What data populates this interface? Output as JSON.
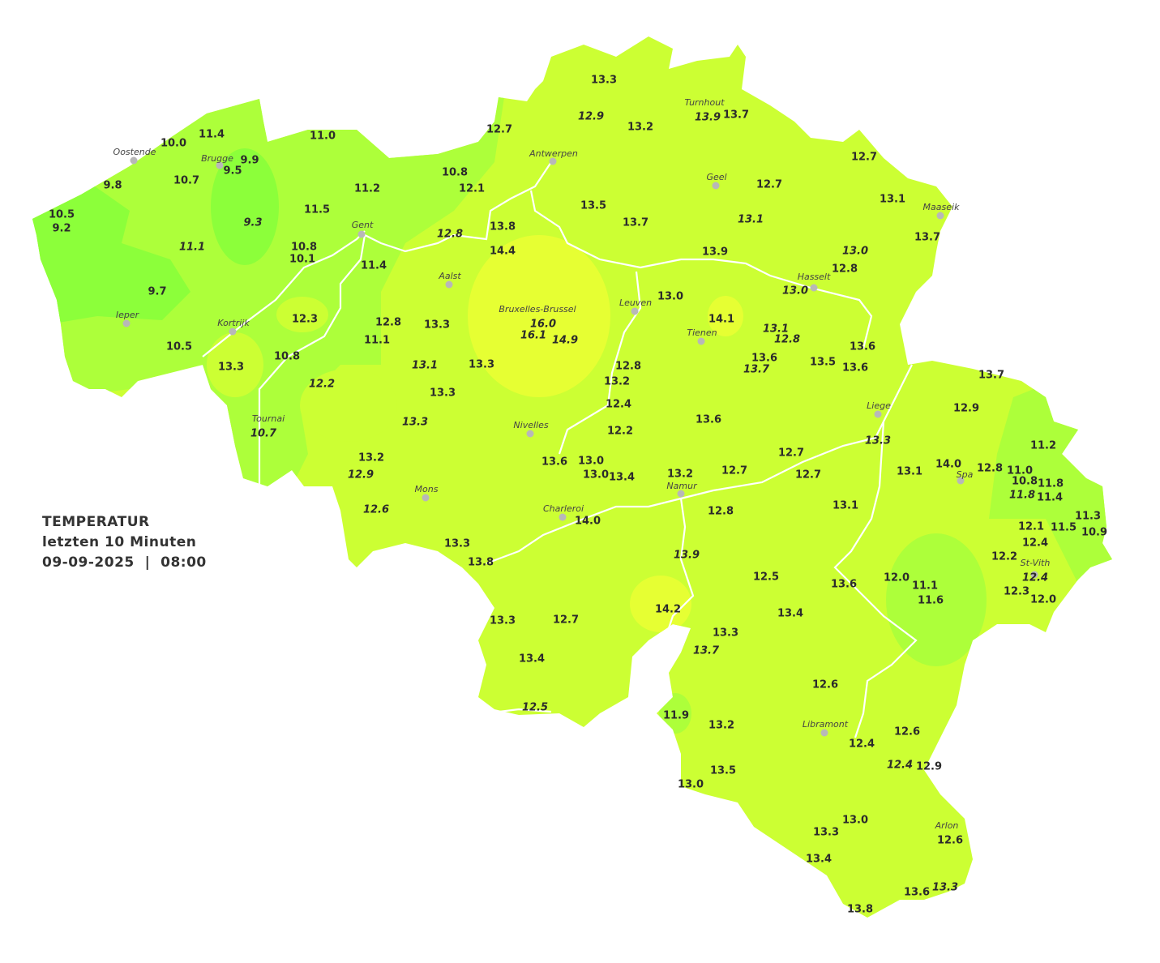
{
  "legend": {
    "title": "TEMPERATUR",
    "period": "letzten 10 Minuten",
    "datetime": "09-09-2025  |  08:00"
  },
  "colors": {
    "base": "#ccff33",
    "cool": "#adff3a",
    "cold": "#8cff3a",
    "warm": "#e6ff33",
    "river": "#ffffff",
    "city_dot": "#b8b8b8"
  },
  "cities": [
    "Oostende",
    "Brugge",
    "Gent",
    "Antwerpen",
    "Turnhout",
    "Geel",
    "Maaseik",
    "Aalst",
    "Ieper",
    "Kortrijk",
    "Leuven",
    "Hasselt",
    "Bruxelles-Brussel",
    "Tienen",
    "Liege",
    "Tournai",
    "Nivelles",
    "Spa",
    "Mons",
    "Namur",
    "Charleroi",
    "St-Vith",
    "Libramont",
    "Arlon"
  ],
  "stations": [
    {
      "v": "13.3"
    },
    {
      "v": "12.9",
      "italic": true
    },
    {
      "v": "13.2"
    },
    {
      "v": "13.9",
      "italic": true
    },
    {
      "v": "13.7"
    },
    {
      "v": "12.7"
    },
    {
      "v": "11.4"
    },
    {
      "v": "10.0"
    },
    {
      "v": "11.0"
    },
    {
      "v": "9.9"
    },
    {
      "v": "9.5"
    },
    {
      "v": "10.7"
    },
    {
      "v": "9.8"
    },
    {
      "v": "10.8"
    },
    {
      "v": "12.1"
    },
    {
      "v": "11.2"
    },
    {
      "v": "12.7"
    },
    {
      "v": "12.7"
    },
    {
      "v": "13.1"
    },
    {
      "v": "10.5"
    },
    {
      "v": "9.2"
    },
    {
      "v": "11.5"
    },
    {
      "v": "9.3",
      "italic": true
    },
    {
      "v": "13.5"
    },
    {
      "v": "13.7"
    },
    {
      "v": "13.1",
      "italic": true
    },
    {
      "v": "13.8"
    },
    {
      "v": "12.8",
      "italic": true
    },
    {
      "v": "14.4"
    },
    {
      "v": "13.7"
    },
    {
      "v": "11.1",
      "italic": true
    },
    {
      "v": "10.8"
    },
    {
      "v": "10.1"
    },
    {
      "v": "11.4"
    },
    {
      "v": "13.9"
    },
    {
      "v": "13.0",
      "italic": true
    },
    {
      "v": "12.8"
    },
    {
      "v": "13.0",
      "italic": true
    },
    {
      "v": "13.0"
    },
    {
      "v": "9.7"
    },
    {
      "v": "14.1"
    },
    {
      "v": "12.3"
    },
    {
      "v": "12.8"
    },
    {
      "v": "13.3"
    },
    {
      "v": "16.0",
      "italic": true
    },
    {
      "v": "16.1",
      "italic": true
    },
    {
      "v": "14.9",
      "italic": true
    },
    {
      "v": "10.5"
    },
    {
      "v": "11.1"
    },
    {
      "v": "13.1",
      "italic": true
    },
    {
      "v": "12.8",
      "italic": true
    },
    {
      "v": "13.3"
    },
    {
      "v": "10.8"
    },
    {
      "v": "13.1",
      "italic": true
    },
    {
      "v": "13.3"
    },
    {
      "v": "12.8"
    },
    {
      "v": "13.2"
    },
    {
      "v": "13.6"
    },
    {
      "v": "13.7",
      "italic": true
    },
    {
      "v": "13.5"
    },
    {
      "v": "13.6"
    },
    {
      "v": "13.6"
    },
    {
      "v": "12.2",
      "italic": true
    },
    {
      "v": "13.3"
    },
    {
      "v": "12.4"
    },
    {
      "v": "13.7"
    },
    {
      "v": "12.9"
    },
    {
      "v": "13.3",
      "italic": true
    },
    {
      "v": "12.2"
    },
    {
      "v": "13.6"
    },
    {
      "v": "10.7",
      "italic": true
    },
    {
      "v": "13.3",
      "italic": true
    },
    {
      "v": "11.2"
    },
    {
      "v": "13.2"
    },
    {
      "v": "12.9",
      "italic": true
    },
    {
      "v": "13.6"
    },
    {
      "v": "13.0"
    },
    {
      "v": "13.0"
    },
    {
      "v": "13.4"
    },
    {
      "v": "13.2"
    },
    {
      "v": "12.7"
    },
    {
      "v": "12.7"
    },
    {
      "v": "12.7"
    },
    {
      "v": "13.1"
    },
    {
      "v": "14.0"
    },
    {
      "v": "12.8"
    },
    {
      "v": "11.0"
    },
    {
      "v": "10.8"
    },
    {
      "v": "11.8"
    },
    {
      "v": "11.8",
      "italic": true
    },
    {
      "v": "11.4"
    },
    {
      "v": "12.6",
      "italic": true
    },
    {
      "v": "12.8"
    },
    {
      "v": "13.1"
    },
    {
      "v": "14.0"
    },
    {
      "v": "11.3"
    },
    {
      "v": "11.5"
    },
    {
      "v": "10.9"
    },
    {
      "v": "12.1"
    },
    {
      "v": "13.3"
    },
    {
      "v": "12.4"
    },
    {
      "v": "13.8"
    },
    {
      "v": "13.9",
      "italic": true
    },
    {
      "v": "12.2"
    },
    {
      "v": "12.4",
      "italic": true
    },
    {
      "v": "12.5"
    },
    {
      "v": "12.0"
    },
    {
      "v": "13.6"
    },
    {
      "v": "11.1"
    },
    {
      "v": "12.3"
    },
    {
      "v": "11.6"
    },
    {
      "v": "12.0"
    },
    {
      "v": "14.2"
    },
    {
      "v": "13.4"
    },
    {
      "v": "13.3"
    },
    {
      "v": "12.7"
    },
    {
      "v": "13.3"
    },
    {
      "v": "13.7",
      "italic": true
    },
    {
      "v": "13.4"
    },
    {
      "v": "12.6"
    },
    {
      "v": "12.5",
      "italic": true
    },
    {
      "v": "11.9"
    },
    {
      "v": "13.2"
    },
    {
      "v": "12.6"
    },
    {
      "v": "12.4"
    },
    {
      "v": "12.4",
      "italic": true
    },
    {
      "v": "12.9"
    },
    {
      "v": "13.5"
    },
    {
      "v": "13.0"
    },
    {
      "v": "13.0"
    },
    {
      "v": "13.3"
    },
    {
      "v": "12.6"
    },
    {
      "v": "13.4"
    },
    {
      "v": "13.6"
    },
    {
      "v": "13.3",
      "italic": true
    },
    {
      "v": "13.8"
    }
  ]
}
